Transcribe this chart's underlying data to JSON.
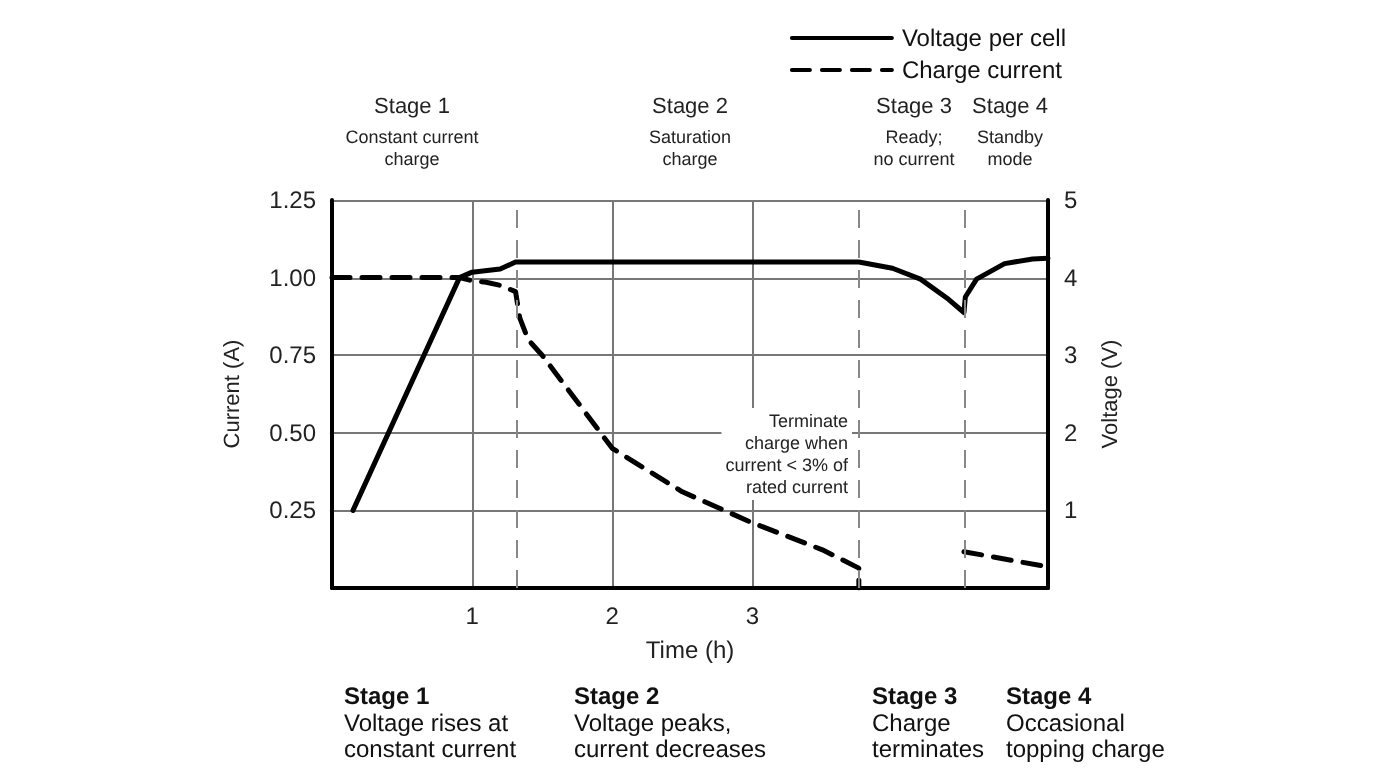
{
  "chart_data": {
    "type": "line",
    "xlabel": "Time (h)",
    "ylabel": "Current (A)",
    "y2label": "Voltage (V)",
    "xlim": [
      0,
      5.11
    ],
    "xticks": [
      1,
      2,
      3
    ],
    "ylim": [
      0,
      1.25
    ],
    "yticks": [
      {
        "value": 0.25,
        "label": "0.25"
      },
      {
        "value": 0.5,
        "label": "0.50"
      },
      {
        "value": 0.75,
        "label": "0.75"
      },
      {
        "value": 1,
        "label": "1.00"
      },
      {
        "value": 1.25,
        "label": "1.25"
      }
    ],
    "y2lim": [
      0,
      5
    ],
    "y2ticks": [
      1,
      2,
      3,
      4,
      5
    ],
    "grid": true,
    "legend": "top right",
    "marker": "none",
    "series": [
      {
        "name": "Voltage per cell",
        "color": "#000000",
        "line_style": "solid",
        "axis": "y2",
        "x": [
          0.15,
          0.91,
          1.0,
          1.2,
          1.31,
          3.76,
          4.0,
          4.2,
          4.4,
          4.51,
          4.52,
          4.6,
          4.8,
          5.0,
          5.11
        ],
        "values": [
          1,
          4,
          4.07,
          4.11,
          4.2,
          4.2,
          4.12,
          3.98,
          3.72,
          3.55,
          3.75,
          3.98,
          4.18,
          4.24,
          4.25
        ]
      },
      {
        "name": "Charge current",
        "color": "#000000",
        "line_style": "dashed",
        "x": [
          0,
          0.91,
          1.0,
          1.1,
          1.2,
          1.31,
          1.34,
          1.4,
          1.5,
          2.0,
          2.5,
          3.0,
          3.5,
          3.76,
          3.76,
          3.77,
          4.51,
          5.11
        ],
        "values": [
          1,
          1,
          0.99,
          0.985,
          0.975,
          0.955,
          0.87,
          0.8,
          0.75,
          0.45,
          0.31,
          0.21,
          0.123,
          0.064,
          0,
          null,
          0.117,
          0.068
        ]
      }
    ],
    "ref_lines": [
      {
        "axis": "x",
        "value": 1.31,
        "color": "#888888",
        "line_style": "dashed"
      },
      {
        "axis": "x",
        "value": 3.76,
        "color": "#888888",
        "line_style": "dashed"
      },
      {
        "axis": "x",
        "value": 4.51,
        "color": "#888888",
        "line_style": "dashed"
      }
    ],
    "annotations": [
      "Stage 1\nConstant current\ncharge",
      "Stage 2\nSaturation\ncharge",
      "Stage 3\nReady;\nno current",
      "Stage 4\nStandby\nmode",
      "Terminate\ncharge when\ncurrent < 3% of\nrated current",
      "Stage 1\nVoltage rises at\nconstant current",
      "Stage 2\nVoltage peaks,\ncurrent decreases",
      "Stage 3\nCharge\nterminates",
      "Stage 4\nOccasional\ntopping charge"
    ]
  }
}
